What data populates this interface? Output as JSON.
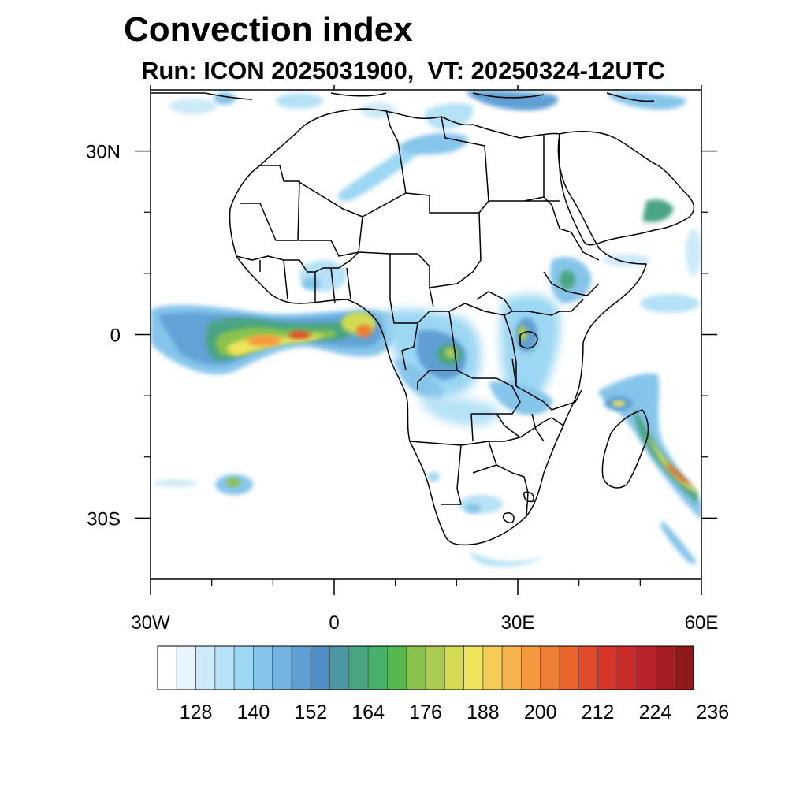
{
  "header": {
    "title": "Convection index",
    "subtitle": "Run: ICON 2025031900,  VT: 20250324-12UTC"
  },
  "map": {
    "projection": "cylindrical equidistant",
    "lon_range": [
      -30,
      60
    ],
    "lat_range": [
      -40,
      40
    ],
    "lon_ticks": [
      {
        "value": -30,
        "label": "30W"
      },
      {
        "value": 0,
        "label": "0"
      },
      {
        "value": 30,
        "label": "30E"
      },
      {
        "value": 60,
        "label": "60E"
      }
    ],
    "lat_ticks": [
      {
        "value": 30,
        "label": "30N"
      },
      {
        "value": 0,
        "label": "0"
      },
      {
        "value": -30,
        "label": "30S"
      }
    ],
    "minor_lon_ticks": [
      -20,
      -10,
      10,
      20,
      40,
      50
    ],
    "minor_lat_ticks": [
      20,
      10,
      -10,
      -20
    ],
    "field": "convection index",
    "features": [
      {
        "name": "equatorial atlantic band",
        "lon": [
          -30,
          8
        ],
        "lat": [
          -4,
          4
        ],
        "peak": 208
      },
      {
        "name": "central africa",
        "lon": [
          8,
          30
        ],
        "lat": [
          -12,
          4
        ],
        "peak": 188
      },
      {
        "name": "east africa highlands",
        "lon": [
          28,
          42
        ],
        "lat": [
          -10,
          12
        ],
        "peak": 176
      },
      {
        "name": "mozambique channel / madagascar",
        "lon": [
          44,
          60
        ],
        "lat": [
          -30,
          -8
        ],
        "peak": 212
      },
      {
        "name": "south atlantic cell",
        "lon": [
          -20,
          -16
        ],
        "lat": [
          -26,
          -22
        ],
        "peak": 176
      },
      {
        "name": "sahara streak",
        "lon": [
          0,
          20
        ],
        "lat": [
          18,
          30
        ],
        "peak": 152
      }
    ]
  },
  "colorbar": {
    "colors": [
      "#ffffff",
      "#e6f5fd",
      "#cdeaf8",
      "#b5e2f6",
      "#9cd7f3",
      "#86c5ea",
      "#74b4e3",
      "#5e9fd4",
      "#4f8ec7",
      "#4b97a3",
      "#49a482",
      "#47b06a",
      "#54b84e",
      "#8ac24e",
      "#aacb4f",
      "#d3db53",
      "#efe45a",
      "#f5cc55",
      "#f6b44e",
      "#f39a40",
      "#ee7e33",
      "#e9652c",
      "#e24b2a",
      "#d83528",
      "#c92a2a",
      "#b8232b",
      "#a51d23",
      "#8f1a1a"
    ],
    "labels": [
      "128",
      "140",
      "152",
      "164",
      "176",
      "188",
      "200",
      "212",
      "224",
      "236"
    ],
    "levels": [
      128,
      140,
      152,
      164,
      176,
      188,
      200,
      212,
      224,
      236
    ]
  }
}
